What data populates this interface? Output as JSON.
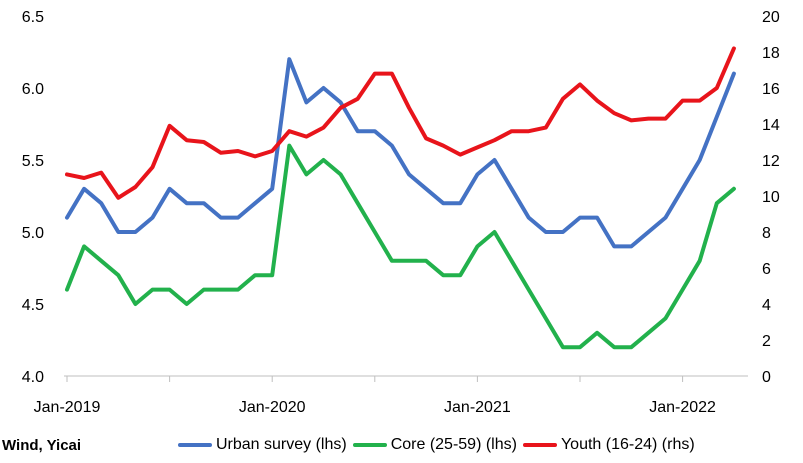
{
  "source": "Wind, Yicai",
  "chart_data": {
    "type": "line",
    "x": [
      "Jan-2019",
      "Feb-2019",
      "Mar-2019",
      "Apr-2019",
      "May-2019",
      "Jun-2019",
      "Jul-2019",
      "Aug-2019",
      "Sep-2019",
      "Oct-2019",
      "Nov-2019",
      "Dec-2019",
      "Jan-2020",
      "Feb-2020",
      "Mar-2020",
      "Apr-2020",
      "May-2020",
      "Jun-2020",
      "Jul-2020",
      "Aug-2020",
      "Sep-2020",
      "Oct-2020",
      "Nov-2020",
      "Dec-2020",
      "Jan-2021",
      "Feb-2021",
      "Mar-2021",
      "Apr-2021",
      "May-2021",
      "Jun-2021",
      "Jul-2021",
      "Aug-2021",
      "Sep-2021",
      "Oct-2021",
      "Nov-2021",
      "Dec-2021",
      "Jan-2022",
      "Feb-2022",
      "Mar-2022",
      "Apr-2022"
    ],
    "x_tick_labels": [
      "Jan-2019",
      "Jan-2020",
      "Jan-2021",
      "Jan-2022"
    ],
    "y_left_ticks": [
      "4.0",
      "4.5",
      "5.0",
      "5.5",
      "6.0",
      "6.5"
    ],
    "y_right_ticks": [
      "0",
      "2",
      "4",
      "6",
      "8",
      "10",
      "12",
      "14",
      "16",
      "18",
      "20"
    ],
    "ylim_left": [
      4.0,
      6.5
    ],
    "ylim_right": [
      0,
      20
    ],
    "series": [
      {
        "name": "Urban survey (lhs)",
        "axis": "left",
        "color": "#4472C4",
        "start_index": 0,
        "values": [
          5.1,
          5.3,
          5.2,
          5.0,
          5.0,
          5.1,
          5.3,
          5.2,
          5.2,
          5.1,
          5.1,
          5.2,
          5.3,
          6.2,
          5.9,
          6.0,
          5.9,
          5.7,
          5.7,
          5.6,
          5.4,
          5.3,
          5.2,
          5.2,
          5.4,
          5.5,
          5.3,
          5.1,
          5.0,
          5.0,
          5.1,
          5.1,
          4.9,
          4.9,
          5.0,
          5.1,
          5.3,
          5.5,
          5.8,
          6.1
        ]
      },
      {
        "name": "Core (25-59) (lhs)",
        "axis": "left",
        "color": "#22B14C",
        "start_index": 0,
        "values": [
          4.6,
          4.9,
          4.8,
          4.7,
          4.5,
          4.6,
          4.6,
          4.5,
          4.6,
          4.6,
          4.6,
          4.7,
          4.7,
          5.6,
          5.4,
          5.5,
          5.4,
          5.2,
          5.0,
          4.8,
          4.8,
          4.8,
          4.7,
          4.7,
          4.9,
          5.0,
          4.8,
          4.6,
          4.4,
          4.2,
          4.2,
          4.3,
          4.2,
          4.2,
          4.3,
          4.4,
          4.6,
          4.8,
          5.2,
          5.3
        ]
      },
      {
        "name": "Youth (16-24) (rhs)",
        "axis": "right",
        "color": "#E8141B",
        "start_index": 0,
        "values": [
          11.2,
          11.0,
          11.3,
          9.9,
          10.5,
          11.6,
          13.9,
          13.1,
          13.0,
          12.4,
          12.5,
          12.2,
          12.5,
          13.6,
          13.3,
          13.8,
          14.9,
          15.4,
          16.8,
          16.8,
          14.9,
          13.2,
          12.8,
          12.3,
          12.7,
          13.1,
          13.6,
          13.6,
          13.8,
          15.4,
          16.2,
          15.3,
          14.6,
          14.2,
          14.3,
          14.3,
          15.3,
          15.3,
          16.0,
          18.2
        ]
      }
    ]
  }
}
